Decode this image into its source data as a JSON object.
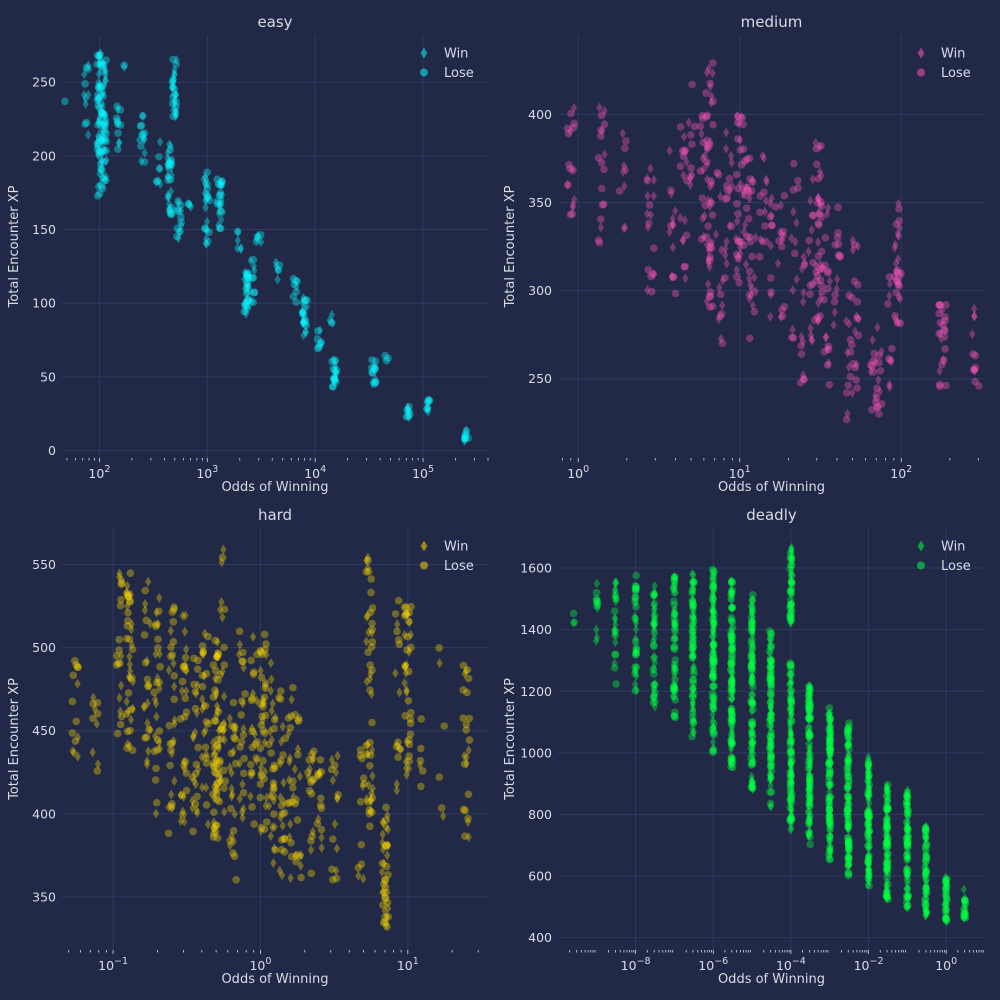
{
  "colors": {
    "background": "#212946",
    "grid": "#2e3a60",
    "text": "#d8dce6",
    "easy": "#08f7fe",
    "medium": "#fe53bb",
    "hard": "#f5d300",
    "deadly": "#00ff41"
  },
  "chart_data": [
    {
      "type": "scatter",
      "title": "easy",
      "xlabel": "Odds of Winning",
      "ylabel": "Total Encounter XP",
      "x_scale": "log",
      "xlim": [
        45,
        400000
      ],
      "ylim": [
        -5,
        282
      ],
      "x_ticks": [
        {
          "value": 100,
          "label": "10^2"
        },
        {
          "value": 1000,
          "label": "10^3"
        },
        {
          "value": 10000,
          "label": "10^4"
        },
        {
          "value": 100000,
          "label": "10^5"
        }
      ],
      "y_ticks": [
        0,
        50,
        100,
        150,
        200,
        250
      ],
      "grid": true,
      "legend": {
        "position": "top-right",
        "entries": [
          {
            "label": "Win",
            "marker": "diamond"
          },
          {
            "label": "Lose",
            "marker": "circle"
          }
        ]
      },
      "color": "#08f7fe",
      "clusters": [
        {
          "x": 50,
          "y": [
            237,
            237
          ],
          "n": 1
        },
        {
          "x": 75,
          "y": [
            212,
            266
          ],
          "n": 12
        },
        {
          "x": 100,
          "y": [
            172,
            270
          ],
          "n": 60
        },
        {
          "x": 110,
          "y": [
            175,
            265
          ],
          "n": 50
        },
        {
          "x": 150,
          "y": [
            200,
            235
          ],
          "n": 12
        },
        {
          "x": 170,
          "y": [
            260,
            262
          ],
          "n": 2
        },
        {
          "x": 250,
          "y": [
            195,
            235
          ],
          "n": 14
        },
        {
          "x": 350,
          "y": [
            180,
            210
          ],
          "n": 8
        },
        {
          "x": 450,
          "y": [
            160,
            210
          ],
          "n": 30
        },
        {
          "x": 500,
          "y": [
            225,
            268
          ],
          "n": 30
        },
        {
          "x": 550,
          "y": [
            140,
            170
          ],
          "n": 14
        },
        {
          "x": 700,
          "y": [
            165,
            175
          ],
          "n": 4
        },
        {
          "x": 1000,
          "y": [
            140,
            190
          ],
          "n": 24
        },
        {
          "x": 1300,
          "y": [
            150,
            185
          ],
          "n": 24
        },
        {
          "x": 2000,
          "y": [
            130,
            150
          ],
          "n": 6
        },
        {
          "x": 2300,
          "y": [
            92,
            125
          ],
          "n": 30
        },
        {
          "x": 2600,
          "y": [
            100,
            130
          ],
          "n": 12
        },
        {
          "x": 3000,
          "y": [
            140,
            150
          ],
          "n": 6
        },
        {
          "x": 4500,
          "y": [
            115,
            128
          ],
          "n": 6
        },
        {
          "x": 6500,
          "y": [
            100,
            120
          ],
          "n": 8
        },
        {
          "x": 8000,
          "y": [
            75,
            105
          ],
          "n": 24
        },
        {
          "x": 11000,
          "y": [
            68,
            82
          ],
          "n": 8
        },
        {
          "x": 14000,
          "y": [
            85,
            95
          ],
          "n": 4
        },
        {
          "x": 15000,
          "y": [
            42,
            62
          ],
          "n": 20
        },
        {
          "x": 35000,
          "y": [
            45,
            62
          ],
          "n": 14
        },
        {
          "x": 45000,
          "y": [
            60,
            65
          ],
          "n": 3
        },
        {
          "x": 72000,
          "y": [
            20,
            30
          ],
          "n": 10
        },
        {
          "x": 110000,
          "y": [
            25,
            35
          ],
          "n": 10
        },
        {
          "x": 250000,
          "y": [
            6,
            14
          ],
          "n": 10
        }
      ]
    },
    {
      "type": "scatter",
      "title": "medium",
      "xlabel": "Odds of Winning",
      "ylabel": "Total Encounter XP",
      "x_scale": "log",
      "xlim": [
        0.75,
        330
      ],
      "ylim": [
        205,
        445
      ],
      "x_ticks": [
        {
          "value": 1,
          "label": "10^0"
        },
        {
          "value": 10,
          "label": "10^1"
        },
        {
          "value": 100,
          "label": "10^2"
        }
      ],
      "y_ticks": [
        250,
        300,
        350,
        400
      ],
      "grid": true,
      "legend": {
        "position": "top-right",
        "entries": [
          {
            "label": "Win",
            "marker": "diamond"
          },
          {
            "label": "Lose",
            "marker": "circle"
          }
        ]
      },
      "color": "#fe53bb",
      "clusters": [
        {
          "x": 0.9,
          "y": [
            335,
            405
          ],
          "n": 18
        },
        {
          "x": 1.4,
          "y": [
            325,
            405
          ],
          "n": 18
        },
        {
          "x": 1.9,
          "y": [
            325,
            390
          ],
          "n": 10
        },
        {
          "x": 2.8,
          "y": [
            295,
            385
          ],
          "n": 18
        },
        {
          "x": 3.8,
          "y": [
            290,
            390
          ],
          "n": 14
        },
        {
          "x": 4.5,
          "y": [
            300,
            395
          ],
          "n": 18
        },
        {
          "x": 5,
          "y": [
            350,
            420
          ],
          "n": 10
        },
        {
          "x": 6,
          "y": [
            325,
            400
          ],
          "n": 20
        },
        {
          "x": 6.5,
          "y": [
            290,
            430
          ],
          "n": 45
        },
        {
          "x": 7.5,
          "y": [
            270,
            380
          ],
          "n": 14
        },
        {
          "x": 8.5,
          "y": [
            290,
            395
          ],
          "n": 18
        },
        {
          "x": 10,
          "y": [
            290,
            400
          ],
          "n": 30
        },
        {
          "x": 11,
          "y": [
            310,
            390
          ],
          "n": 18
        },
        {
          "x": 12,
          "y": [
            270,
            370
          ],
          "n": 20
        },
        {
          "x": 14,
          "y": [
            300,
            380
          ],
          "n": 14
        },
        {
          "x": 16,
          "y": [
            285,
            355
          ],
          "n": 12
        },
        {
          "x": 18,
          "y": [
            270,
            360
          ],
          "n": 14
        },
        {
          "x": 22,
          "y": [
            270,
            375
          ],
          "n": 14
        },
        {
          "x": 25,
          "y": [
            245,
            320
          ],
          "n": 14
        },
        {
          "x": 28,
          "y": [
            270,
            365
          ],
          "n": 16
        },
        {
          "x": 31,
          "y": [
            280,
            385
          ],
          "n": 40
        },
        {
          "x": 35,
          "y": [
            240,
            360
          ],
          "n": 18
        },
        {
          "x": 40,
          "y": [
            275,
            350
          ],
          "n": 14
        },
        {
          "x": 48,
          "y": [
            225,
            310
          ],
          "n": 14
        },
        {
          "x": 52,
          "y": [
            230,
            330
          ],
          "n": 18
        },
        {
          "x": 68,
          "y": [
            230,
            280
          ],
          "n": 12
        },
        {
          "x": 72,
          "y": [
            230,
            270
          ],
          "n": 12
        },
        {
          "x": 85,
          "y": [
            245,
            320
          ],
          "n": 10
        },
        {
          "x": 95,
          "y": [
            280,
            350
          ],
          "n": 30
        },
        {
          "x": 180,
          "y": [
            245,
            295
          ],
          "n": 24
        },
        {
          "x": 290,
          "y": [
            240,
            290
          ],
          "n": 12
        }
      ]
    },
    {
      "type": "scatter",
      "title": "hard",
      "xlabel": "Odds of Winning",
      "ylabel": "Total Encounter XP",
      "x_scale": "log",
      "xlim": [
        0.045,
        35
      ],
      "ylim": [
        318,
        572
      ],
      "x_ticks": [
        {
          "value": 0.1,
          "label": "10^-1"
        },
        {
          "value": 1,
          "label": "10^0"
        },
        {
          "value": 10,
          "label": "10^1"
        }
      ],
      "y_ticks": [
        350,
        400,
        450,
        500,
        550
      ],
      "grid": true,
      "legend": {
        "position": "top-right",
        "entries": [
          {
            "label": "Win",
            "marker": "diamond"
          },
          {
            "label": "Lose",
            "marker": "circle"
          }
        ]
      },
      "color": "#f5d300",
      "clusters": [
        {
          "x": 0.055,
          "y": [
            430,
            500
          ],
          "n": 14
        },
        {
          "x": 0.075,
          "y": [
            425,
            470
          ],
          "n": 10
        },
        {
          "x": 0.11,
          "y": [
            440,
            545
          ],
          "n": 20
        },
        {
          "x": 0.13,
          "y": [
            430,
            550
          ],
          "n": 40
        },
        {
          "x": 0.17,
          "y": [
            420,
            540
          ],
          "n": 24
        },
        {
          "x": 0.2,
          "y": [
            400,
            530
          ],
          "n": 30
        },
        {
          "x": 0.25,
          "y": [
            380,
            525
          ],
          "n": 30
        },
        {
          "x": 0.3,
          "y": [
            390,
            520
          ],
          "n": 30
        },
        {
          "x": 0.36,
          "y": [
            380,
            500
          ],
          "n": 26
        },
        {
          "x": 0.42,
          "y": [
            390,
            520
          ],
          "n": 28
        },
        {
          "x": 0.5,
          "y": [
            385,
            505
          ],
          "n": 60
        },
        {
          "x": 0.55,
          "y": [
            380,
            560
          ],
          "n": 30
        },
        {
          "x": 0.65,
          "y": [
            360,
            470
          ],
          "n": 26
        },
        {
          "x": 0.75,
          "y": [
            390,
            510
          ],
          "n": 24
        },
        {
          "x": 0.9,
          "y": [
            390,
            510
          ],
          "n": 24
        },
        {
          "x": 1.05,
          "y": [
            385,
            510
          ],
          "n": 40
        },
        {
          "x": 1.2,
          "y": [
            370,
            500
          ],
          "n": 30
        },
        {
          "x": 1.4,
          "y": [
            360,
            480
          ],
          "n": 24
        },
        {
          "x": 1.6,
          "y": [
            360,
            480
          ],
          "n": 20
        },
        {
          "x": 1.8,
          "y": [
            360,
            460
          ],
          "n": 18
        },
        {
          "x": 2.2,
          "y": [
            360,
            440
          ],
          "n": 18
        },
        {
          "x": 2.5,
          "y": [
            360,
            440
          ],
          "n": 14
        },
        {
          "x": 3.2,
          "y": [
            360,
            440
          ],
          "n": 16
        },
        {
          "x": 4.8,
          "y": [
            360,
            440
          ],
          "n": 12
        },
        {
          "x": 5.5,
          "y": [
            390,
            555
          ],
          "n": 50
        },
        {
          "x": 7,
          "y": [
            330,
            410
          ],
          "n": 40
        },
        {
          "x": 8.5,
          "y": [
            410,
            530
          ],
          "n": 16
        },
        {
          "x": 10,
          "y": [
            420,
            535
          ],
          "n": 40
        },
        {
          "x": 12.5,
          "y": [
            410,
            470
          ],
          "n": 6
        },
        {
          "x": 17,
          "y": [
            395,
            505
          ],
          "n": 6
        },
        {
          "x": 25,
          "y": [
            385,
            490
          ],
          "n": 24
        }
      ]
    },
    {
      "type": "scatter",
      "title": "deadly",
      "xlabel": "Odds of Winning",
      "ylabel": "Total Encounter XP",
      "x_scale": "log",
      "xlim": [
        1e-10,
        10
      ],
      "ylim": [
        360,
        1730
      ],
      "x_ticks": [
        {
          "value": 1e-08,
          "label": "10^-8"
        },
        {
          "value": 1e-06,
          "label": "10^-6"
        },
        {
          "value": 0.0001,
          "label": "10^-4"
        },
        {
          "value": 0.01,
          "label": "10^-2"
        },
        {
          "value": 1,
          "label": "10^0"
        }
      ],
      "y_ticks": [
        400,
        600,
        800,
        1000,
        1200,
        1400,
        1600
      ],
      "grid": true,
      "legend": {
        "position": "top-right",
        "entries": [
          {
            "label": "Win",
            "marker": "diamond"
          },
          {
            "label": "Lose",
            "marker": "circle"
          }
        ]
      },
      "color": "#00ff41",
      "clusters": [
        {
          "x": 2.5e-10,
          "y": [
            1410,
            1510
          ],
          "n": 3
        },
        {
          "x": 1e-09,
          "y": [
            1320,
            1580
          ],
          "n": 12
        },
        {
          "x": 3e-09,
          "y": [
            1220,
            1560
          ],
          "n": 25
        },
        {
          "x": 1e-08,
          "y": [
            1200,
            1580
          ],
          "n": 35
        },
        {
          "x": 3e-08,
          "y": [
            1150,
            1560
          ],
          "n": 45
        },
        {
          "x": 1e-07,
          "y": [
            1100,
            1580
          ],
          "n": 60
        },
        {
          "x": 3e-07,
          "y": [
            1050,
            1580
          ],
          "n": 80
        },
        {
          "x": 1e-06,
          "y": [
            1000,
            1600
          ],
          "n": 110
        },
        {
          "x": 3e-06,
          "y": [
            950,
            1560
          ],
          "n": 120
        },
        {
          "x": 1e-05,
          "y": [
            880,
            1520
          ],
          "n": 110
        },
        {
          "x": 3e-05,
          "y": [
            820,
            1400
          ],
          "n": 100
        },
        {
          "x": 0.0001,
          "y": [
            1420,
            1670
          ],
          "n": 50
        },
        {
          "x": 0.0001,
          "y": [
            750,
            1300
          ],
          "n": 110
        },
        {
          "x": 0.0003,
          "y": [
            700,
            1220
          ],
          "n": 110
        },
        {
          "x": 0.001,
          "y": [
            650,
            1150
          ],
          "n": 110
        },
        {
          "x": 0.003,
          "y": [
            600,
            1100
          ],
          "n": 100
        },
        {
          "x": 0.01,
          "y": [
            560,
            1000
          ],
          "n": 100
        },
        {
          "x": 0.03,
          "y": [
            520,
            900
          ],
          "n": 90
        },
        {
          "x": 0.1,
          "y": [
            490,
            880
          ],
          "n": 80
        },
        {
          "x": 0.3,
          "y": [
            470,
            760
          ],
          "n": 60
        },
        {
          "x": 1,
          "y": [
            450,
            600
          ],
          "n": 35
        },
        {
          "x": 3,
          "y": [
            460,
            560
          ],
          "n": 20
        }
      ]
    }
  ]
}
